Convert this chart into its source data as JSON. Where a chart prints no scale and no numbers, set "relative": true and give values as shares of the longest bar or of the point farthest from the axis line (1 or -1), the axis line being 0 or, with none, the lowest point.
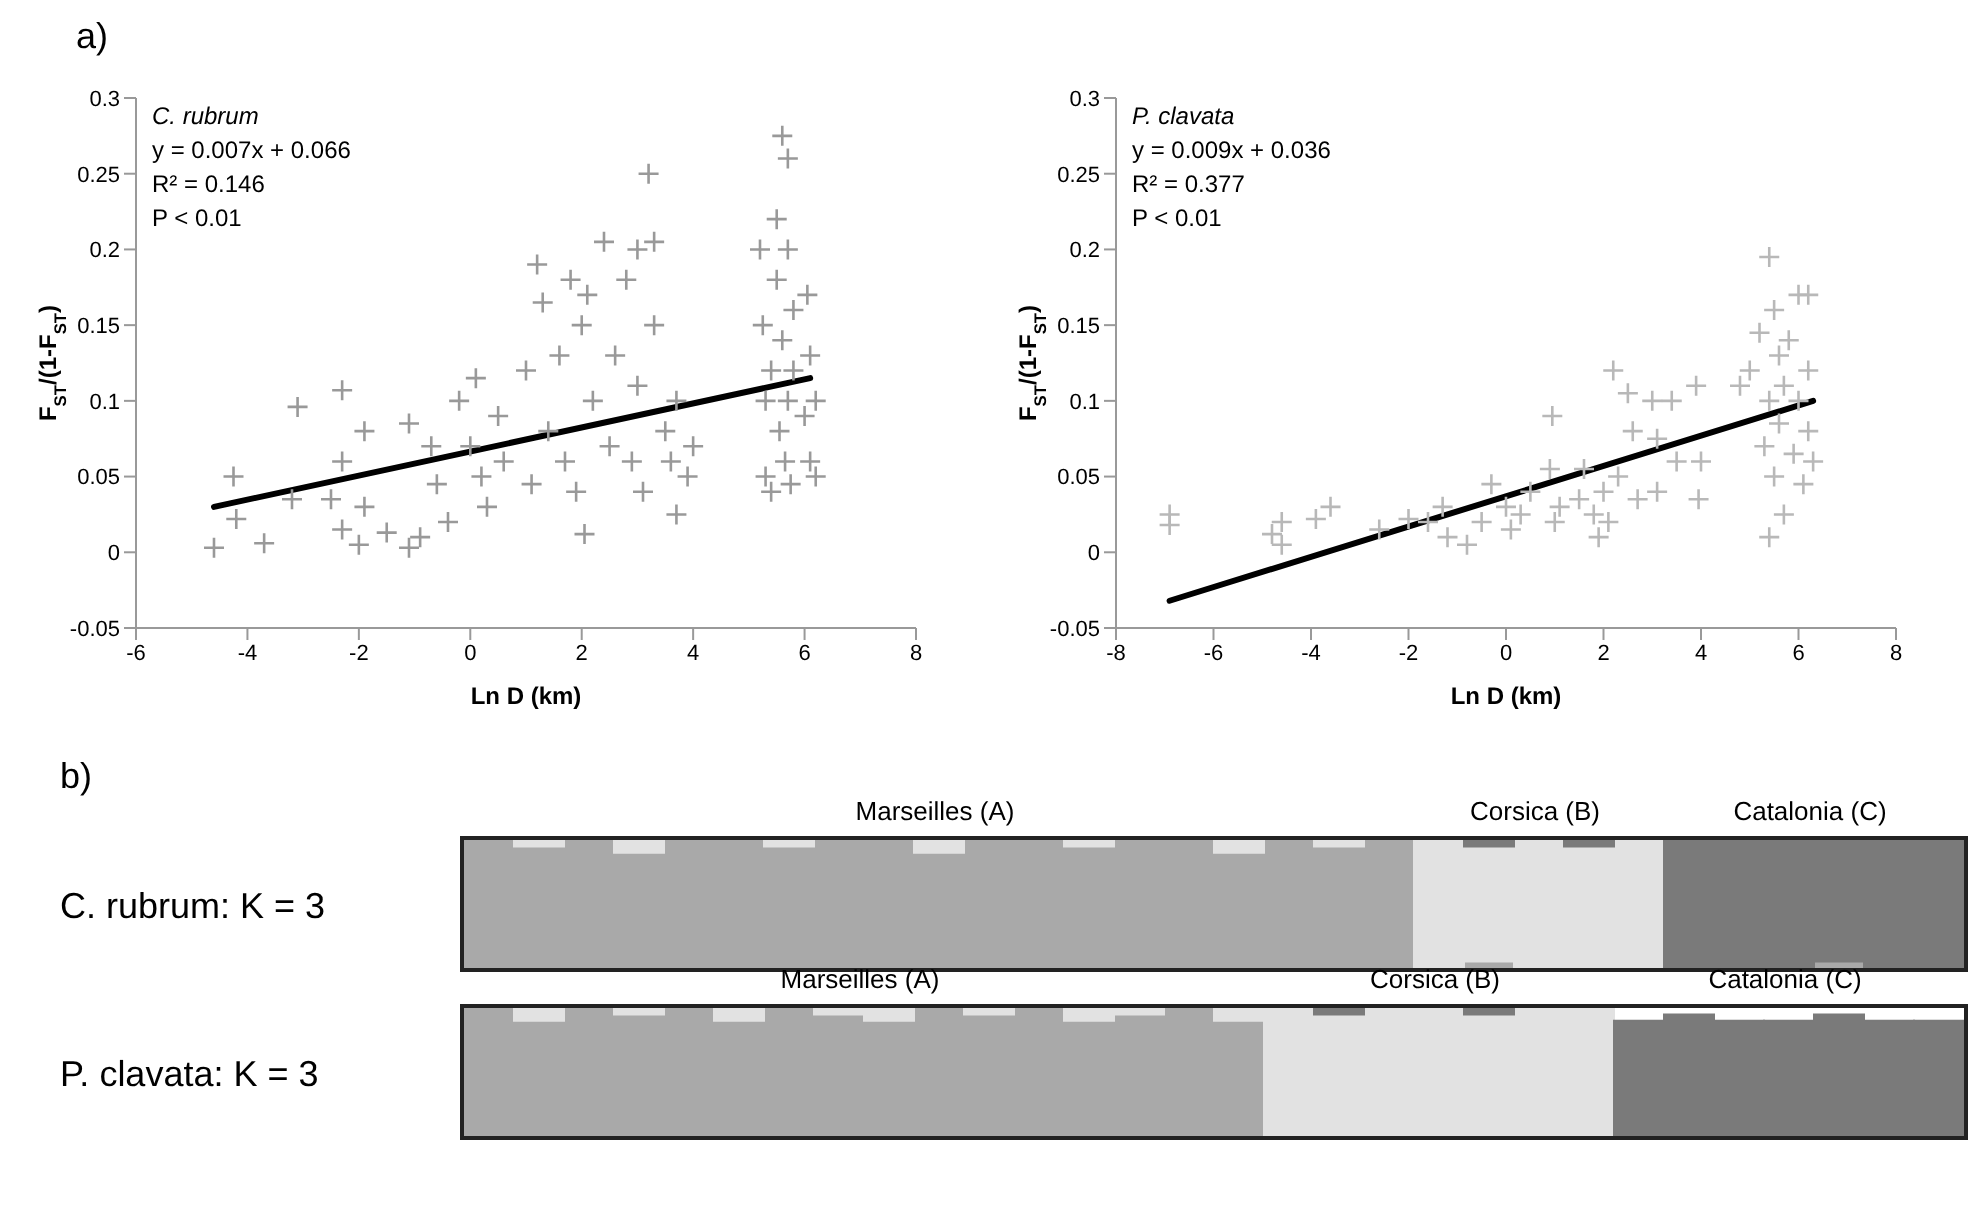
{
  "chart_data": [
    {
      "type": "scatter",
      "title": "C. rubrum",
      "xlabel": "Ln D (km)",
      "ylabel": "F$_{ST}$/(1-F$_{ST}$)",
      "annotations": [
        "a)",
        "y = 0.007x + 0.066",
        "R² = 0.146",
        "P < 0.01"
      ],
      "xlim": [
        -6,
        8
      ],
      "xticks": [
        -6,
        -4,
        -2,
        0,
        2,
        4,
        6,
        8
      ],
      "ylim": [
        -0.05,
        0.3
      ],
      "yticks": [
        -0.05,
        0,
        0.05,
        0.1,
        0.15,
        0.2,
        0.25,
        0.3
      ],
      "grid": false,
      "series": [
        {
          "type": "scatter",
          "marker": "cross",
          "color": "#999999",
          "x": [
            -4.6,
            -4.25,
            -4.2,
            -3.7,
            -3.1,
            -3.2,
            -2.3,
            -2.3,
            -2.5,
            -2.3,
            -2.0,
            -1.9,
            -1.9,
            -1.5,
            -1.1,
            -1.1,
            -0.9,
            -0.7,
            -0.6,
            -0.4,
            -0.2,
            0.1,
            0.0,
            0.2,
            0.3,
            0.5,
            0.6,
            1.0,
            1.2,
            1.3,
            1.1,
            1.4,
            1.6,
            1.8,
            1.7,
            1.9,
            2.0,
            2.05,
            2.1,
            2.2,
            2.4,
            2.5,
            2.6,
            2.8,
            2.9,
            3.0,
            3.0,
            3.1,
            3.2,
            3.3,
            3.3,
            3.5,
            3.6,
            3.7,
            3.7,
            3.9,
            4.0,
            5.2,
            5.25,
            5.3,
            5.3,
            5.4,
            5.4,
            5.5,
            5.5,
            5.55,
            5.6,
            5.6,
            5.65,
            5.7,
            5.7,
            5.7,
            5.75,
            5.8,
            5.8,
            6.05,
            6.1,
            6.1,
            6.2,
            6.2,
            6.0
          ],
          "values": [
            0.003,
            0.05,
            0.022,
            0.006,
            0.096,
            0.035,
            0.107,
            0.06,
            0.035,
            0.015,
            0.005,
            0.03,
            0.08,
            0.013,
            0.085,
            0.003,
            0.01,
            0.07,
            0.045,
            0.02,
            0.1,
            0.115,
            0.07,
            0.05,
            0.03,
            0.09,
            0.06,
            0.12,
            0.19,
            0.165,
            0.045,
            0.08,
            0.13,
            0.18,
            0.06,
            0.04,
            0.15,
            0.012,
            0.17,
            0.1,
            0.205,
            0.07,
            0.13,
            0.18,
            0.06,
            0.2,
            0.11,
            0.04,
            0.25,
            0.205,
            0.15,
            0.08,
            0.06,
            0.1,
            0.025,
            0.05,
            0.07,
            0.2,
            0.15,
            0.1,
            0.05,
            0.12,
            0.04,
            0.22,
            0.18,
            0.08,
            0.275,
            0.14,
            0.06,
            0.26,
            0.2,
            0.1,
            0.045,
            0.16,
            0.12,
            0.17,
            0.13,
            0.06,
            0.1,
            0.05,
            0.09
          ]
        },
        {
          "type": "line",
          "color": "#000000",
          "x": [
            -4.6,
            6.1
          ],
          "values": [
            0.03,
            0.115
          ]
        }
      ]
    },
    {
      "type": "scatter",
      "title": "P. clavata",
      "xlabel": "Ln D (km)",
      "ylabel": "F$_{ST}$/(1-F$_{ST}$)",
      "annotations": [
        "y = 0.009x + 0.036",
        "R² = 0.377",
        "P < 0.01"
      ],
      "xlim": [
        -8,
        8
      ],
      "xticks": [
        -8,
        -6,
        -4,
        -2,
        0,
        2,
        4,
        6,
        8
      ],
      "ylim": [
        -0.05,
        0.3
      ],
      "yticks": [
        -0.05,
        0,
        0.05,
        0.1,
        0.15,
        0.2,
        0.25,
        0.3
      ],
      "grid": false,
      "series": [
        {
          "type": "scatter",
          "marker": "cross",
          "color": "#b8b8b8",
          "x": [
            -6.9,
            -6.9,
            -4.8,
            -4.6,
            -4.6,
            -3.9,
            -3.6,
            -2.6,
            -2.0,
            -1.6,
            -1.3,
            -1.2,
            -0.8,
            -0.5,
            -0.3,
            0,
            0.1,
            0.3,
            0.5,
            0.9,
            0.95,
            1.1,
            1.0,
            1.5,
            1.6,
            1.8,
            1.9,
            2.0,
            2.1,
            2.2,
            2.3,
            2.5,
            2.6,
            2.7,
            3.0,
            3.1,
            3.1,
            3.4,
            3.5,
            3.95,
            3.9,
            4.0,
            4.8,
            5.0,
            5.2,
            5.3,
            5.4,
            5.4,
            5.4,
            5.5,
            5.5,
            5.6,
            5.6,
            5.7,
            5.7,
            5.8,
            5.9,
            6.0,
            6.0,
            6.1,
            6.2,
            6.2,
            6.2,
            6.3
          ],
          "values": [
            0.025,
            0.018,
            0.012,
            0.02,
            0.005,
            0.022,
            0.03,
            0.015,
            0.022,
            0.02,
            0.03,
            0.01,
            0.005,
            0.02,
            0.045,
            0.03,
            0.015,
            0.025,
            0.04,
            0.055,
            0.09,
            0.03,
            0.02,
            0.035,
            0.055,
            0.025,
            0.01,
            0.04,
            0.02,
            0.12,
            0.05,
            0.105,
            0.08,
            0.035,
            0.1,
            0.075,
            0.04,
            0.1,
            0.06,
            0.035,
            0.11,
            0.06,
            0.11,
            0.12,
            0.145,
            0.07,
            0.195,
            0.01,
            0.1,
            0.16,
            0.05,
            0.13,
            0.085,
            0.025,
            0.11,
            0.14,
            0.065,
            0.17,
            0.1,
            0.045,
            0.17,
            0.12,
            0.08,
            0.06
          ]
        },
        {
          "type": "line",
          "color": "#000000",
          "x": [
            -6.9,
            6.3
          ],
          "values": [
            -0.032,
            0.1
          ]
        }
      ]
    },
    {
      "type": "bar",
      "stacked": true,
      "relative": true,
      "title": "C. rubrum: K = 3",
      "annotations": [
        "b)",
        "Marseilles (A)",
        "Corsica (B)",
        "Catalonia (C)"
      ],
      "categories": [
        null,
        null,
        null,
        null,
        null,
        null,
        null,
        null,
        null,
        null,
        null,
        null,
        null,
        null,
        null,
        null,
        null,
        null,
        null,
        null,
        null,
        null,
        null,
        null,
        null,
        null,
        null,
        null,
        null,
        null
      ],
      "series": [
        {
          "color": "#a9a9a9",
          "values": [
            1,
            0.95,
            1,
            0.9,
            1,
            1,
            0.95,
            1,
            1,
            0.9,
            1,
            1,
            0.95,
            1,
            1,
            0.9,
            1,
            0.95,
            1,
            0,
            0.05,
            0,
            0,
            0,
            0,
            0,
            0,
            0.05,
            0,
            0
          ]
        },
        {
          "color": "#e2e2e2",
          "values": [
            0,
            0.05,
            0,
            0.1,
            0,
            0,
            0.05,
            0,
            0,
            0.1,
            0,
            0,
            0.05,
            0,
            0,
            0.1,
            0,
            0.05,
            0,
            1,
            0.9,
            1,
            0.95,
            1,
            0,
            0,
            0,
            0,
            0,
            0
          ]
        },
        {
          "color": "#7a7a7a",
          "values": [
            0,
            0,
            0,
            0,
            0,
            0,
            0,
            0,
            0,
            0,
            0,
            0,
            0,
            0,
            0,
            0,
            0,
            0,
            0,
            0,
            0.05,
            0,
            0.05,
            0,
            1,
            1,
            1,
            0.95,
            1,
            1
          ]
        }
      ]
    },
    {
      "type": "bar",
      "stacked": true,
      "relative": true,
      "title": "P. clavata: K = 3",
      "annotations": [
        "Marseilles (A)",
        "Corsica (B)",
        "Catalonia (C)"
      ],
      "categories": [
        null,
        null,
        null,
        null,
        null,
        null,
        null,
        null,
        null,
        null,
        null,
        null,
        null,
        null,
        null,
        null,
        null,
        null,
        null,
        null,
        null,
        null,
        null,
        null,
        null,
        null,
        null,
        null,
        null,
        null
      ],
      "series": [
        {
          "color": "#a9a9a9",
          "values": [
            1,
            0.9,
            1,
            0.95,
            1,
            0.9,
            1,
            0.95,
            0.9,
            1,
            0.95,
            1,
            0.9,
            0.95,
            1,
            0.9,
            0,
            0,
            0,
            0,
            0,
            0,
            0,
            0,
            0,
            0,
            0,
            0,
            0,
            0
          ]
        },
        {
          "color": "#e2e2e2",
          "values": [
            0,
            0.1,
            0,
            0.05,
            0,
            0.1,
            0,
            0.05,
            0.1,
            0,
            0.05,
            0,
            0.1,
            0.05,
            0,
            0.1,
            1,
            0.95,
            1,
            1,
            0.95,
            1,
            1,
            0,
            0,
            0,
            0,
            0,
            0,
            0
          ]
        },
        {
          "color": "#7a7a7a",
          "values": [
            0,
            0,
            0,
            0,
            0,
            0,
            0,
            0,
            0,
            0,
            0,
            0,
            0,
            0,
            0,
            0,
            0,
            0.05,
            0,
            0,
            0.05,
            0,
            0,
            0.9,
            0.95,
            0.9,
            0.9,
            0.95,
            0.9,
            0.9
          ]
        }
      ]
    }
  ]
}
